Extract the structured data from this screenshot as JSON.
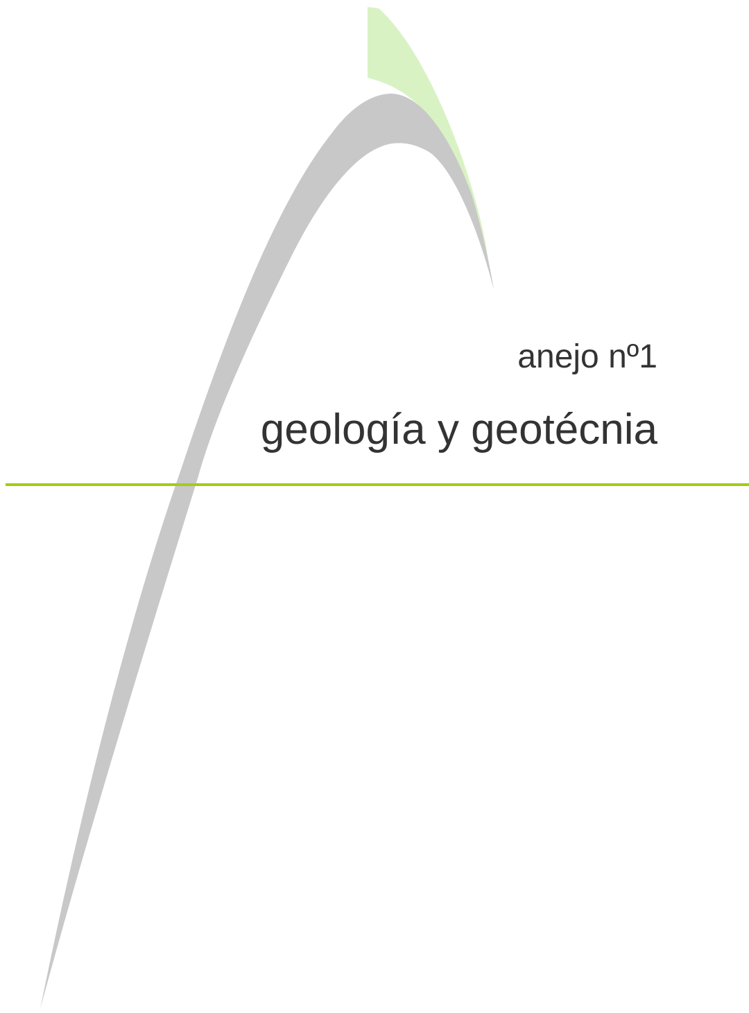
{
  "header": {
    "annex": "anejo nº1",
    "title": "geología y geotécnia"
  }
}
